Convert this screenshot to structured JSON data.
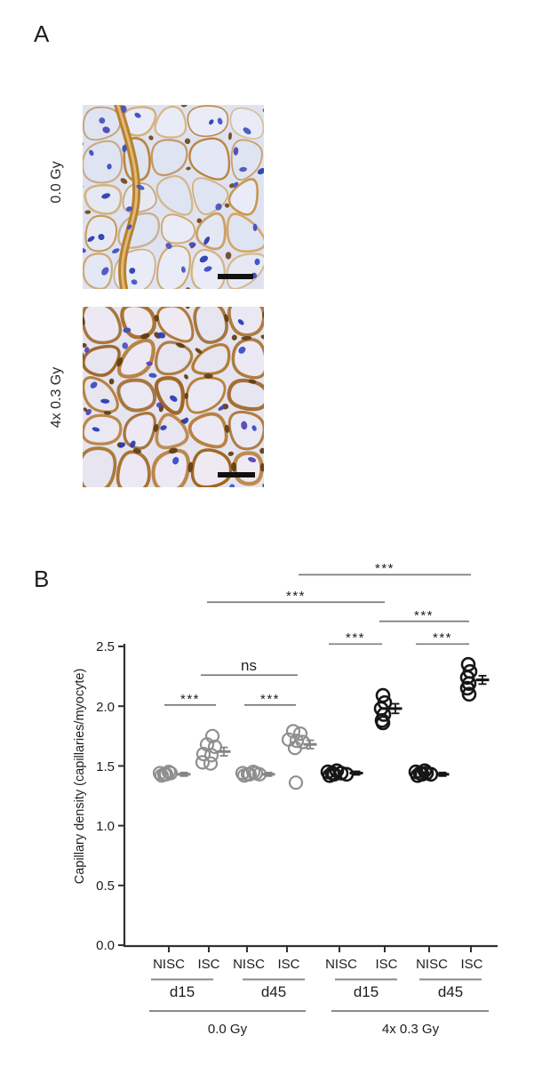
{
  "figure": {
    "panel_a_label": "A",
    "panel_b_label": "B"
  },
  "panel_a": {
    "images": [
      {
        "label": "0.0 Gy",
        "description": "capillary-stained muscle cross-section, unirradiated"
      },
      {
        "label": "4x 0.3 Gy",
        "description": "capillary-stained muscle cross-section, irradiated"
      }
    ],
    "stain_colors": {
      "background": "#e0e4f1",
      "capillary_stain_brown": "#a06522",
      "nucleus_blue": "#3c4ec2",
      "scale_bar": "#111111"
    }
  },
  "chart_data": {
    "type": "scatter",
    "title": "",
    "xlabel": "",
    "ylabel": "Capillary density  (capillaries/myocyte)",
    "ylim": [
      0.0,
      2.5
    ],
    "yticks": [
      "0.0",
      "0.5",
      "1.0",
      "1.5",
      "2.0",
      "2.5"
    ],
    "grid": false,
    "legend": "none",
    "point_colors": {
      "0.0 Gy": "#8f8f8f",
      "4x 0.3 Gy": "#161616"
    },
    "groups": [
      {
        "tissue": "NISC",
        "day": "d15",
        "condition": "0.0 Gy",
        "values": [
          1.44,
          1.43,
          1.45,
          1.42,
          1.43,
          1.44,
          1.43
        ],
        "mean": 1.43,
        "sem": 0.015
      },
      {
        "tissue": "ISC",
        "day": "d15",
        "condition": "0.0 Gy",
        "values": [
          1.75,
          1.68,
          1.66,
          1.6,
          1.59,
          1.53,
          1.52
        ],
        "mean": 1.62,
        "sem": 0.035
      },
      {
        "tissue": "NISC",
        "day": "d45",
        "condition": "0.0 Gy",
        "values": [
          1.44,
          1.43,
          1.45,
          1.42,
          1.43,
          1.44,
          1.43
        ],
        "mean": 1.43,
        "sem": 0.015
      },
      {
        "tissue": "ISC",
        "day": "d45",
        "condition": "0.0 Gy",
        "values": [
          1.79,
          1.77,
          1.72,
          1.71,
          1.7,
          1.65,
          1.36
        ],
        "mean": 1.68,
        "sem": 0.035
      },
      {
        "tissue": "NISC",
        "day": "d15",
        "condition": "4x 0.3 Gy",
        "values": [
          1.45,
          1.44,
          1.46,
          1.42,
          1.43,
          1.44,
          1.43
        ],
        "mean": 1.44,
        "sem": 0.015
      },
      {
        "tissue": "ISC",
        "day": "d15",
        "condition": "4x 0.3 Gy",
        "values": [
          2.09,
          2.03,
          1.98,
          1.93,
          1.88,
          1.86
        ],
        "mean": 1.98,
        "sem": 0.04
      },
      {
        "tissue": "NISC",
        "day": "d45",
        "condition": "4x 0.3 Gy",
        "values": [
          1.45,
          1.44,
          1.46,
          1.42,
          1.43,
          1.44,
          1.43
        ],
        "mean": 1.43,
        "sem": 0.015
      },
      {
        "tissue": "ISC",
        "day": "d45",
        "condition": "4x 0.3 Gy",
        "values": [
          2.35,
          2.29,
          2.24,
          2.19,
          2.15,
          2.1
        ],
        "mean": 2.22,
        "sem": 0.035
      }
    ],
    "day_brackets": [
      {
        "label": "d15"
      },
      {
        "label": "d45"
      },
      {
        "label": "d15"
      },
      {
        "label": "d45"
      }
    ],
    "condition_labels": [
      "0.0 Gy",
      "4x 0.3 Gy"
    ],
    "comparisons": [
      {
        "label": "***",
        "between": [
          0,
          1
        ],
        "level": 2.01
      },
      {
        "label": "***",
        "between": [
          2,
          3
        ],
        "level": 2.01
      },
      {
        "label": "ns",
        "between": [
          1,
          3
        ],
        "level": 2.26
      },
      {
        "label": "***",
        "between": [
          4,
          5
        ],
        "level": 2.52
      },
      {
        "label": "***",
        "between": [
          6,
          7
        ],
        "level": 2.52
      },
      {
        "label": "***",
        "between": [
          5,
          7
        ],
        "level": 2.71
      },
      {
        "label": "***",
        "between": [
          1,
          5
        ],
        "level": 2.87
      },
      {
        "label": "***",
        "between": [
          3,
          7
        ],
        "level": 3.1
      }
    ]
  }
}
